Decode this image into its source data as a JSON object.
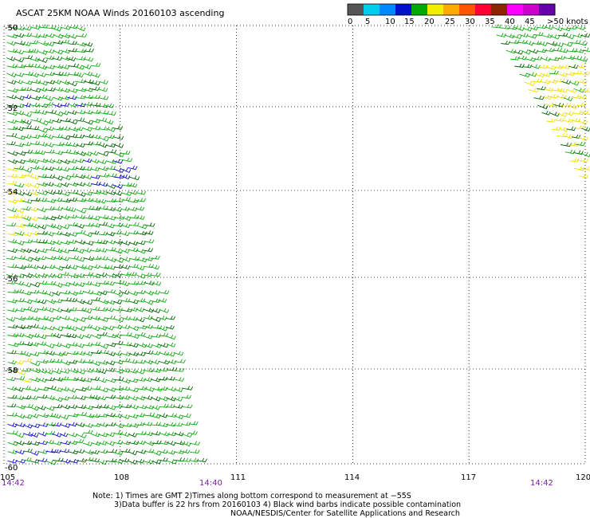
{
  "title": "ASCAT 25KM NOAA Winds 20160103 ascending",
  "colorbar": {
    "colors": [
      "#555555",
      "#00ccee",
      "#0088ff",
      "#0011cc",
      "#00aa00",
      "#f2ee00",
      "#ffaa00",
      "#ff5500",
      "#ff0033",
      "#8b2500",
      "#ff00ff",
      "#cc00cc",
      "#6600aa"
    ],
    "labels": [
      "0",
      "5",
      "10",
      "15",
      "20",
      "25",
      "30",
      "35",
      "40",
      "45",
      ">50 knots"
    ]
  },
  "axes": {
    "x_ticks": [
      "105",
      "108",
      "111",
      "114",
      "117",
      "120"
    ],
    "y_ticks": [
      "-50",
      "-52",
      "-54",
      "-56",
      "-58",
      "-60"
    ]
  },
  "times": [
    "14:42",
    "14:40",
    "14:42"
  ],
  "notes": {
    "line1": "Note: 1) Times are GMT 2)Times along bottom correspond to measurement at −55S",
    "line2": "3)Data buffer is 22 hrs from 20160103 4) Black wind barbs indicate possible contamination",
    "line3": "NOAA/NESDIS/Center for Satellite Applications and Research"
  },
  "chart_data": {
    "type": "wind-barb map",
    "x_range": [
      105,
      120
    ],
    "y_range": [
      -60,
      -50
    ],
    "x_ticks": [
      105,
      108,
      111,
      114,
      117,
      120
    ],
    "y_ticks": [
      -50,
      -52,
      -54,
      -56,
      -58,
      -60
    ],
    "grid": "dotted",
    "swaths": [
      {
        "lon_west_edge": 105,
        "lon_east_edge_at_lat": [
          [
            -50,
            107.0
          ],
          [
            -54,
            108.5
          ],
          [
            -60,
            110.1
          ]
        ],
        "dominant_speed_knots": 20,
        "time": "14:42"
      },
      {
        "lon_east_edge": 120,
        "lon_west_edge_at_lat": [
          [
            -50,
            117.5
          ],
          [
            -54,
            120.0
          ]
        ],
        "dominant_speed_knots": 25,
        "time": "14:42"
      }
    ]
  },
  "colors": {
    "blue_barb": "#1010cc",
    "green_barb": "#11aa11",
    "dark_green_barb": "#006600",
    "yellow_barb": "#eedd00",
    "grid": "#000000"
  }
}
